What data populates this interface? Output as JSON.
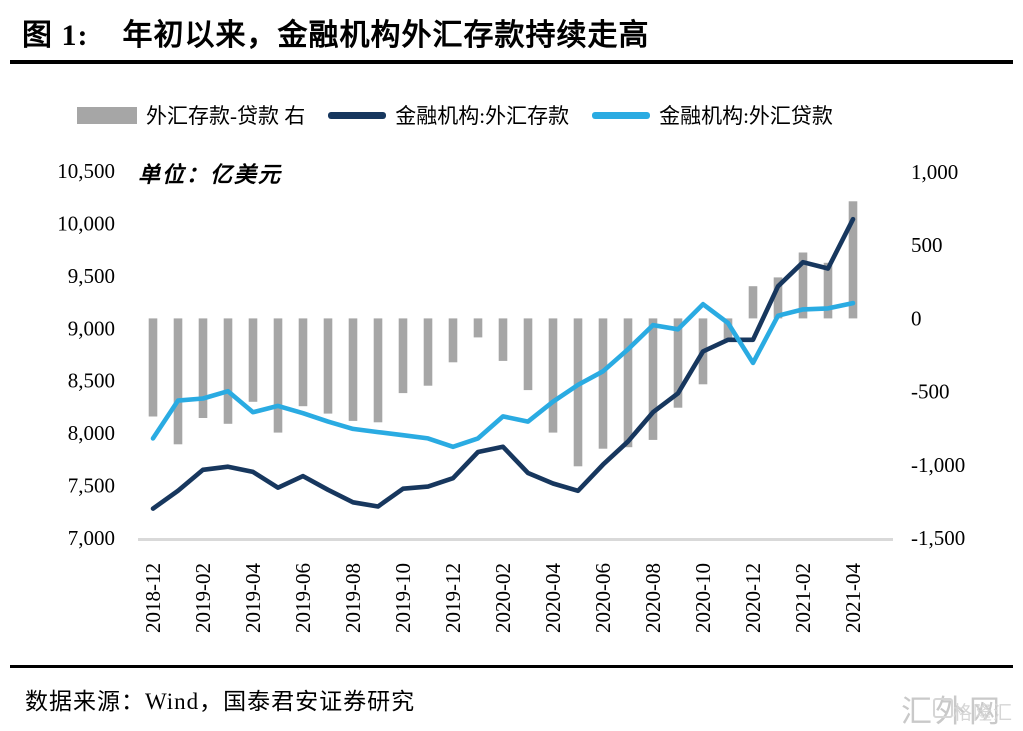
{
  "header": {
    "title_prefix": "图 1:",
    "title": "年初以来，金融机构外汇存款持续走高"
  },
  "legend": [
    {
      "label": "外汇存款-贷款 右",
      "marker": "bar-swatch",
      "color": "#a6a6a6"
    },
    {
      "label": "金融机构:外汇存款",
      "marker": "line-swatch",
      "color": "#17375e"
    },
    {
      "label": "金融机构:外汇贷款",
      "marker": "line-swatch",
      "color": "#2aabe2"
    }
  ],
  "footer": {
    "source": "数据来源：Wind，国泰君安证券研究",
    "watermark": "汇外网",
    "watermark_overlay": "格隆汇"
  },
  "chart_data": {
    "type": "combo",
    "unit_label": "单位：亿美元",
    "x": [
      "2018-12",
      "2019-01",
      "2019-02",
      "2019-03",
      "2019-04",
      "2019-05",
      "2019-06",
      "2019-07",
      "2019-08",
      "2019-09",
      "2019-10",
      "2019-11",
      "2019-12",
      "2020-01",
      "2020-02",
      "2020-03",
      "2020-04",
      "2020-05",
      "2020-06",
      "2020-07",
      "2020-08",
      "2020-09",
      "2020-10",
      "2020-11",
      "2020-12",
      "2021-01",
      "2021-02",
      "2021-03",
      "2021-04"
    ],
    "x_tick_labels": [
      "2018-12",
      "2019-02",
      "2019-04",
      "2019-06",
      "2019-08",
      "2019-10",
      "2019-12",
      "2020-02",
      "2020-04",
      "2020-06",
      "2020-08",
      "2020-10",
      "2020-12",
      "2021-02",
      "2021-04"
    ],
    "series": [
      {
        "name": "外汇存款-贷款",
        "type": "bar",
        "axis": "right",
        "color": "#a6a6a6",
        "values": [
          -670,
          -860,
          -680,
          -720,
          -570,
          -780,
          -600,
          -650,
          -700,
          -710,
          -510,
          -460,
          -300,
          -130,
          -290,
          -490,
          -780,
          -1010,
          -890,
          -880,
          -830,
          -610,
          -450,
          -160,
          220,
          280,
          450,
          380,
          800
        ]
      },
      {
        "name": "金融机构:外汇存款",
        "type": "line",
        "axis": "left",
        "color": "#17375e",
        "values": [
          7280,
          7450,
          7650,
          7680,
          7630,
          7480,
          7590,
          7460,
          7340,
          7300,
          7470,
          7490,
          7570,
          7820,
          7870,
          7620,
          7520,
          7450,
          7700,
          7920,
          8200,
          8380,
          8780,
          8890,
          8890,
          9400,
          9630,
          9570,
          10040
        ]
      },
      {
        "name": "金融机构:外汇贷款",
        "type": "line",
        "axis": "left",
        "color": "#2aabe2",
        "values": [
          7950,
          8310,
          8330,
          8400,
          8200,
          8260,
          8190,
          8110,
          8040,
          8010,
          7980,
          7950,
          7870,
          7950,
          8160,
          8110,
          8300,
          8460,
          8590,
          8800,
          9030,
          8990,
          9230,
          9050,
          8670,
          9120,
          9180,
          9190,
          9240
        ]
      }
    ],
    "left_axis": {
      "min": 7000,
      "max": 10500,
      "step": 500
    },
    "right_axis": {
      "min": -1500,
      "max": 1000,
      "step": 500
    },
    "grid": false,
    "legend_position": "top"
  }
}
